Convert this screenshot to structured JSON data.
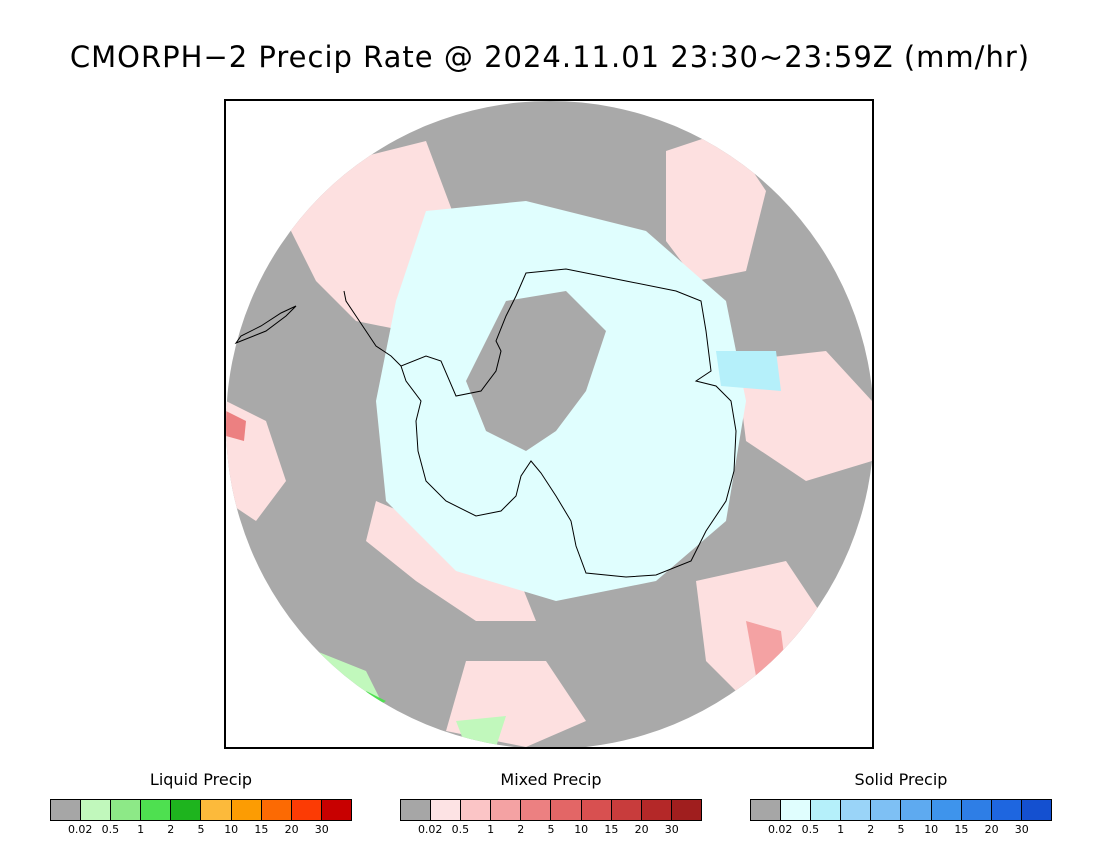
{
  "title": "CMORPH−2 Precip Rate @ 2024.11.01 23:30~23:59Z (mm/hr)",
  "map": {
    "projection": "south-polar-stereographic",
    "background_color": "#a9a9a9",
    "coastline_color": "#000000"
  },
  "legends": [
    {
      "title": "Liquid Precip",
      "colors": [
        "#a6a6a6",
        "#c1f8bc",
        "#8de987",
        "#4ee050",
        "#1eb41e",
        "#fcba3b",
        "#fc9c03",
        "#fc6a03",
        "#fc3b04",
        "#c80000"
      ],
      "ticks": [
        "0.02",
        "0.5",
        "1",
        "2",
        "5",
        "10",
        "15",
        "20",
        "30"
      ]
    },
    {
      "title": "Mixed Precip",
      "colors": [
        "#a6a6a6",
        "#fde3e4",
        "#fbc5c6",
        "#f4a2a3",
        "#ec8081",
        "#e36666",
        "#d85050",
        "#c83c3c",
        "#b42828",
        "#a01e1e"
      ],
      "ticks": [
        "0.02",
        "0.5",
        "1",
        "2",
        "5",
        "10",
        "15",
        "20",
        "30"
      ]
    },
    {
      "title": "Solid Precip",
      "colors": [
        "#a6a6a6",
        "#e0fefe",
        "#b5f0fa",
        "#9ad4f8",
        "#7ec0f4",
        "#5eaaf0",
        "#3e94ec",
        "#2e7ee6",
        "#1e66e0",
        "#1450d0"
      ],
      "ticks": [
        "0.02",
        "0.5",
        "1",
        "2",
        "5",
        "10",
        "15",
        "20",
        "30"
      ]
    }
  ]
}
